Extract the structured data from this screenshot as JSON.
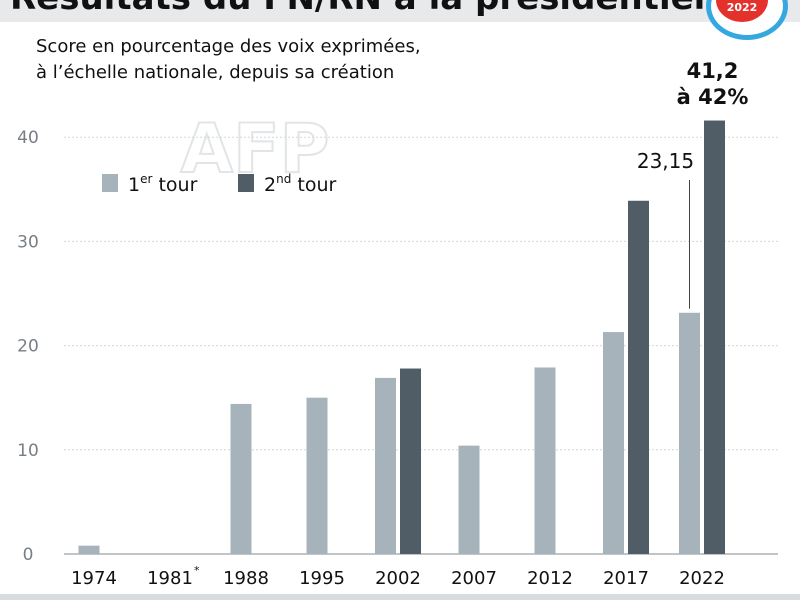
{
  "header": {
    "title": "Résultats du FN/RN à la présidentielle",
    "subtitle_line1": "Score en pourcentage des voix exprimées,",
    "subtitle_line2": "à l’échelle nationale, depuis sa création",
    "badge": "2022",
    "watermark": "AFP"
  },
  "colors": {
    "round1": "#a6b3bb",
    "round2": "#505d66",
    "grid": "#d3d7da",
    "tick": "#777f85",
    "text": "#111111"
  },
  "chart_data": {
    "type": "bar",
    "title": "Résultats du FN/RN à la présidentielle",
    "subtitle": "Score en pourcentage des voix exprimées, à l’échelle nationale, depuis sa création",
    "xlabel": "",
    "ylabel": "",
    "ylim": [
      0,
      45
    ],
    "yticks": [
      0,
      10,
      20,
      30,
      40
    ],
    "grid": true,
    "legend_position": "top-left",
    "categories": [
      "1974",
      "1981",
      "1988",
      "1995",
      "2002",
      "2007",
      "2012",
      "2017",
      "2022"
    ],
    "category_notes": {
      "1981": "*"
    },
    "series": [
      {
        "name": "1er tour",
        "legend_base": "1",
        "legend_sup": "er",
        "legend_rest": " tour",
        "values": [
          0.8,
          null,
          14.4,
          15.0,
          16.9,
          10.4,
          17.9,
          21.3,
          23.15
        ]
      },
      {
        "name": "2nd tour",
        "legend_base": "2",
        "legend_sup": "nd",
        "legend_rest": " tour",
        "values": [
          null,
          null,
          null,
          null,
          17.8,
          null,
          null,
          33.9,
          41.6
        ]
      }
    ],
    "annotations": [
      {
        "category": "2022",
        "series": 0,
        "text": "23,15"
      },
      {
        "category": "2022",
        "series": 1,
        "line1": "41,2",
        "line2": "à 42%"
      }
    ]
  }
}
